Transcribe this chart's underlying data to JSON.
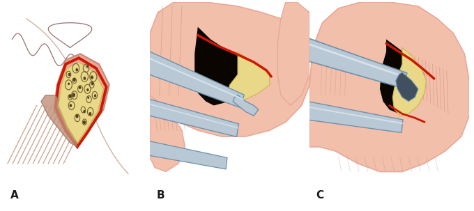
{
  "labels": [
    "A",
    "B",
    "C"
  ],
  "label_fontsize": 11,
  "bg_color": "#ffffff",
  "figsize": [
    6.8,
    3.03
  ],
  "dpi": 100,
  "flesh_color": "#f2bfaa",
  "flesh_mid": "#e8a898",
  "flesh_dark": "#c88878",
  "bone_color": "#e8d888",
  "bone_dark": "#c8b850",
  "red_color": "#cc1800",
  "red_dark": "#8b1000",
  "instrument_light": "#e0e8f0",
  "instrument_mid": "#b8c8d5",
  "instrument_dark": "#7090a8",
  "instrument_shadow": "#405060",
  "black": "#1a1a1a",
  "muscle_color": "#c09078",
  "muscle_dark": "#906858",
  "wound_dark": "#0a0500",
  "tissue_line": "#d4a090"
}
